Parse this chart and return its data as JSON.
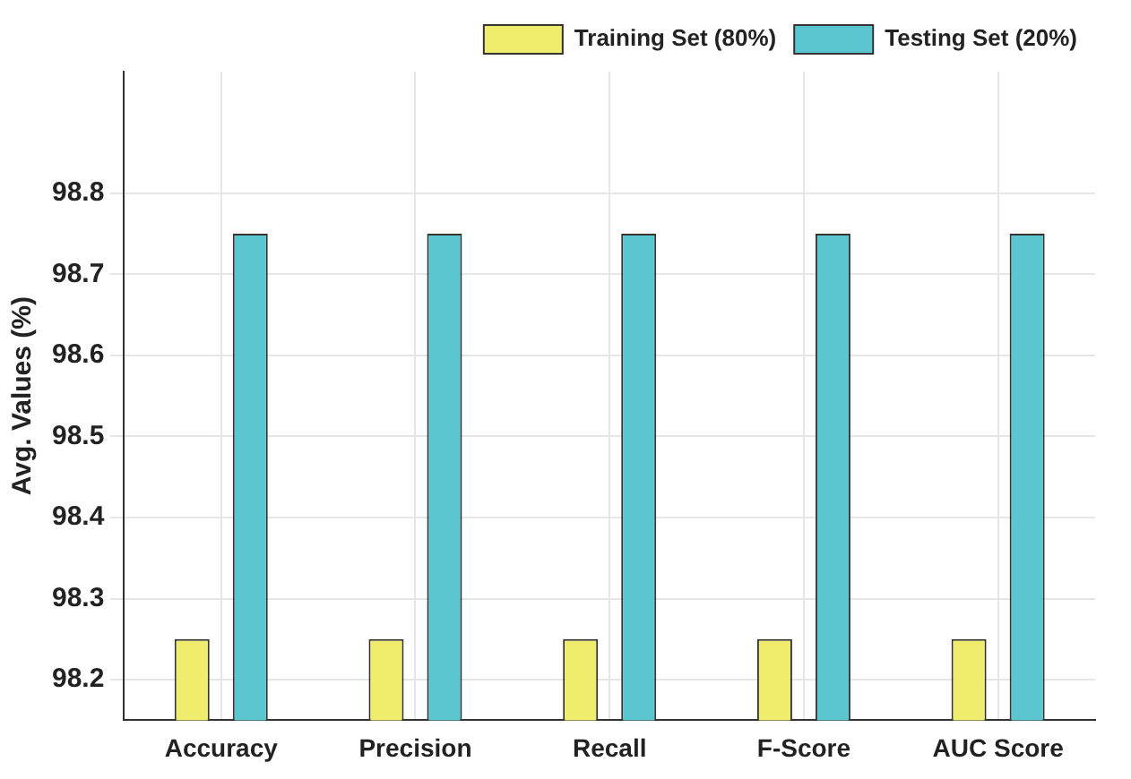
{
  "chart_data": {
    "type": "bar",
    "ylabel": "Avg. Values (%)",
    "categories": [
      "Accuracy",
      "Precision",
      "Recall",
      "F-Score",
      "AUC Score"
    ],
    "series": [
      {
        "name": "Training Set (80%)",
        "color": "#f0ec6e",
        "values": [
          98.25,
          98.25,
          98.25,
          98.25,
          98.25
        ]
      },
      {
        "name": "Testing Set (20%)",
        "color": "#5bc5d0",
        "values": [
          98.75,
          98.75,
          98.75,
          98.75,
          98.75
        ]
      }
    ],
    "ylim": [
      98.15,
      98.95
    ],
    "yticks": [
      98.2,
      98.3,
      98.4,
      98.5,
      98.6,
      98.7,
      98.8
    ],
    "grid": true,
    "legend": "top right"
  }
}
